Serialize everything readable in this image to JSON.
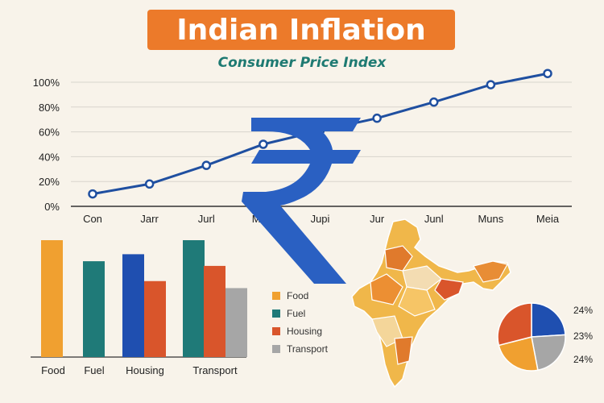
{
  "header": {
    "title": "Indian Inflation",
    "subtitle": "Consumer Price Index"
  },
  "colors": {
    "line": "#1f4fa0",
    "grid": "#d9d4cc",
    "rupee": "#2a60c2",
    "food": "#f0a030",
    "fuel": "#1f7a78",
    "housing": "#d9552b",
    "transport": "#a6a6a6",
    "blue": "#1f4fb0"
  },
  "chart_data": [
    {
      "type": "line",
      "title": "",
      "x": [
        "Con",
        "Jarr",
        "Jurl",
        "Maie",
        "Jupi",
        "Jur",
        "Junl",
        "Muns",
        "Meia"
      ],
      "y_ticks": [
        "0%",
        "20%",
        "40%",
        "60%",
        "80%",
        "100%"
      ],
      "ylim": [
        0,
        100
      ],
      "series": [
        {
          "values": [
            10,
            18,
            33,
            50,
            61,
            71,
            84,
            98,
            107
          ]
        }
      ],
      "grid": true
    },
    {
      "type": "bar",
      "categories": [
        "Food",
        "Fuel",
        "Housing",
        "Transport"
      ],
      "series": [
        {
          "name": "Food",
          "color": "#f0a030",
          "values": [
            100,
            null,
            null,
            null
          ]
        },
        {
          "name": "Fuel",
          "color": "#1f7a78",
          "values": [
            null,
            82,
            null,
            100
          ]
        },
        {
          "name": "Housing",
          "color": "#d9552b",
          "values": [
            null,
            null,
            65,
            78
          ]
        },
        {
          "name": "Transport",
          "color": "#a6a6a6",
          "values": [
            null,
            null,
            null,
            59
          ]
        },
        {
          "name": "",
          "color": "#1f4fb0",
          "values": [
            null,
            null,
            88,
            null
          ]
        }
      ],
      "legend": [
        "Food",
        "Fuel",
        "Housing",
        "Transport"
      ],
      "legend_position": "right"
    },
    {
      "type": "pie",
      "slices": [
        {
          "label": "24%",
          "value": 24,
          "color": "#1f4fb0"
        },
        {
          "label": "23%",
          "value": 23,
          "color": "#a6a6a6"
        },
        {
          "label": "24%",
          "value": 24,
          "color": "#f0a030"
        },
        {
          "label": "",
          "value": 29,
          "color": "#d9552b"
        }
      ]
    }
  ]
}
